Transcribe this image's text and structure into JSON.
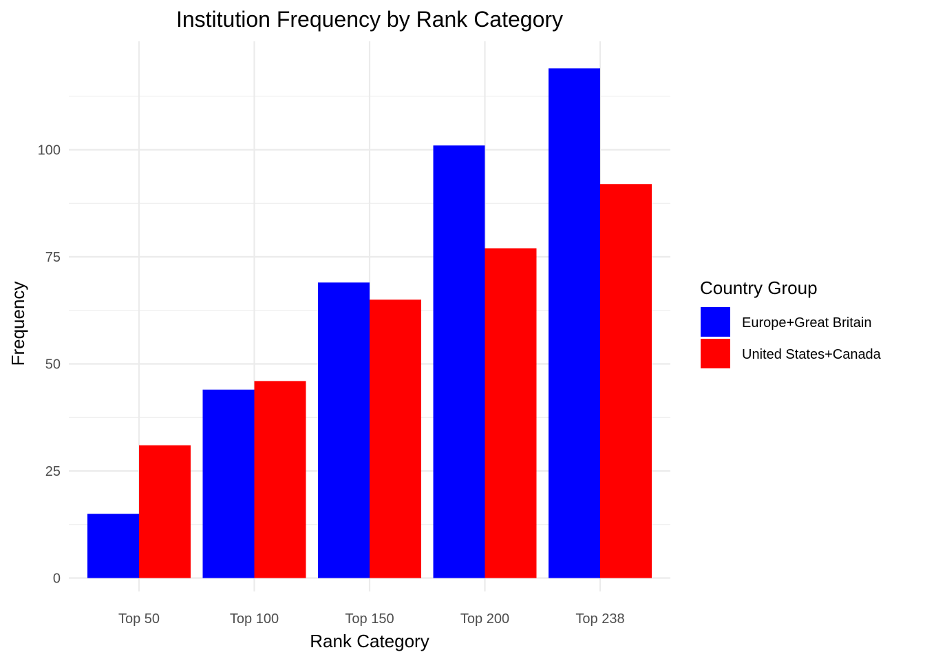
{
  "chart_data": {
    "type": "bar",
    "title": "Institution Frequency by Rank Category",
    "xlabel": "Rank Category",
    "ylabel": "Frequency",
    "categories": [
      "Top 50",
      "Top 100",
      "Top 150",
      "Top 200",
      "Top 238"
    ],
    "series": [
      {
        "name": "Europe+Great Britain",
        "values": [
          15,
          44,
          69,
          101,
          119
        ],
        "color": "#0000FF"
      },
      {
        "name": "United States+Canada",
        "values": [
          31,
          46,
          65,
          77,
          92
        ],
        "color": "#FF0000"
      }
    ],
    "ylim": [
      0,
      119
    ],
    "yticks": [
      0,
      25,
      50,
      75,
      100
    ],
    "grid": true,
    "legend": {
      "title": "Country Group",
      "placement": "right"
    }
  }
}
